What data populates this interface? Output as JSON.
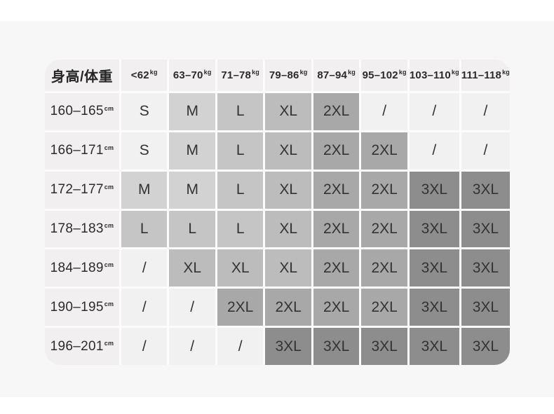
{
  "table": {
    "corner_header": "身高/体重",
    "weight_unit": "kg",
    "height_unit": "cm",
    "weight_columns": [
      "<62",
      "63–70",
      "71–78",
      "79–86",
      "87–94",
      "95–102",
      "103–110",
      "111–118"
    ],
    "rows": [
      {
        "height": "160–165",
        "sizes": [
          "S",
          "M",
          "L",
          "XL",
          "2XL",
          "/",
          "/",
          "/"
        ]
      },
      {
        "height": "166–171",
        "sizes": [
          "S",
          "M",
          "L",
          "XL",
          "2XL",
          "2XL",
          "/",
          "/"
        ]
      },
      {
        "height": "172–177",
        "sizes": [
          "M",
          "M",
          "L",
          "XL",
          "2XL",
          "2XL",
          "3XL",
          "3XL"
        ]
      },
      {
        "height": "178–183",
        "sizes": [
          "L",
          "L",
          "L",
          "XL",
          "2XL",
          "2XL",
          "3XL",
          "3XL"
        ]
      },
      {
        "height": "184–189",
        "sizes": [
          "/",
          "XL",
          "XL",
          "XL",
          "2XL",
          "2XL",
          "3XL",
          "3XL"
        ]
      },
      {
        "height": "190–195",
        "sizes": [
          "/",
          "/",
          "2XL",
          "2XL",
          "2XL",
          "2XL",
          "3XL",
          "3XL"
        ]
      },
      {
        "height": "196–201",
        "sizes": [
          "/",
          "/",
          "/",
          "3XL",
          "3XL",
          "3XL",
          "3XL",
          "3XL"
        ]
      }
    ],
    "colors": {
      "header_bg": "#f1efef",
      "gap": "#fdfcfc",
      "page_band": "#f8f7f7",
      "size_colors": {
        "S": "#f2f1f1",
        "M": "#d3d2d2",
        "L": "#c6c5c5",
        "XL": "#bdbcbc",
        "2XL": "#a9a8a8",
        "3XL": "#8e8d8d",
        "/": "#f2f1f1"
      }
    }
  },
  "chart_data": {
    "type": "table",
    "corner_label": "身高/体重",
    "columns": [
      "<62kg",
      "63–70kg",
      "71–78kg",
      "79–86kg",
      "87–94kg",
      "95–102kg",
      "103–110kg",
      "111–118kg"
    ],
    "row_labels": [
      "160–165cm",
      "166–171cm",
      "172–177cm",
      "178–183cm",
      "184–189cm",
      "190–195cm",
      "196–201cm"
    ],
    "cells": [
      [
        "S",
        "M",
        "L",
        "XL",
        "2XL",
        "/",
        "/",
        "/"
      ],
      [
        "S",
        "M",
        "L",
        "XL",
        "2XL",
        "2XL",
        "/",
        "/"
      ],
      [
        "M",
        "M",
        "L",
        "XL",
        "2XL",
        "2XL",
        "3XL",
        "3XL"
      ],
      [
        "L",
        "L",
        "L",
        "XL",
        "2XL",
        "2XL",
        "3XL",
        "3XL"
      ],
      [
        "/",
        "XL",
        "XL",
        "XL",
        "2XL",
        "2XL",
        "3XL",
        "3XL"
      ],
      [
        "/",
        "/",
        "2XL",
        "2XL",
        "2XL",
        "2XL",
        "3XL",
        "3XL"
      ],
      [
        "/",
        "/",
        "/",
        "3XL",
        "3XL",
        "3XL",
        "3XL",
        "3XL"
      ]
    ],
    "legend_position": "none",
    "grid": true
  }
}
